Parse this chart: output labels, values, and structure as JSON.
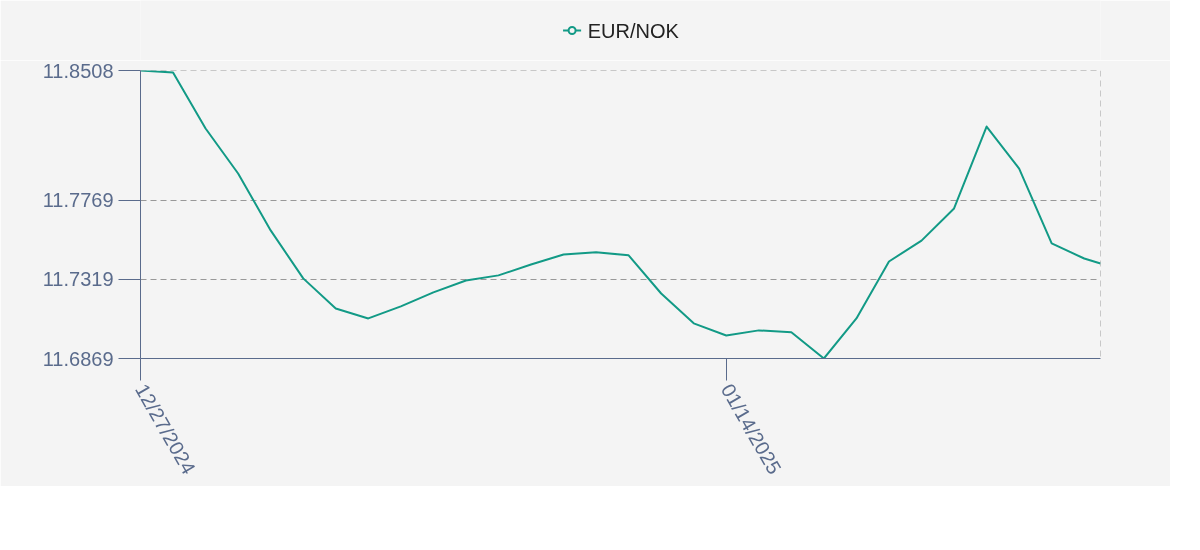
{
  "chart_data": {
    "type": "line",
    "x": [
      "2024-12-27",
      "2024-12-28",
      "2024-12-29",
      "2024-12-30",
      "2024-12-31",
      "2025-01-01",
      "2025-01-02",
      "2025-01-03",
      "2025-01-04",
      "2025-01-05",
      "2025-01-06",
      "2025-01-07",
      "2025-01-08",
      "2025-01-09",
      "2025-01-10",
      "2025-01-11",
      "2025-01-12",
      "2025-01-13",
      "2025-01-14",
      "2025-01-15",
      "2025-01-16",
      "2025-01-17",
      "2025-01-18",
      "2025-01-19",
      "2025-01-20",
      "2025-01-21",
      "2025-01-22",
      "2025-01-23",
      "2025-01-24",
      "2025-01-25",
      "2025-01-25T12:00"
    ],
    "series": [
      {
        "name": "EUR/NOK",
        "color": "#129a86",
        "values": [
          11.8508,
          11.8497,
          11.8178,
          11.7922,
          11.7598,
          11.7325,
          11.7154,
          11.7097,
          11.7166,
          11.7245,
          11.7313,
          11.7342,
          11.7404,
          11.7461,
          11.7473,
          11.7456,
          11.7239,
          11.7069,
          11.7,
          11.7029,
          11.7018,
          11.6869,
          11.7097,
          11.7421,
          11.754,
          11.7723,
          11.8189,
          11.795,
          11.7524,
          11.7438,
          11.741
        ]
      }
    ],
    "xlim": [
      "2024-12-27",
      "2025-01-25T12:00"
    ],
    "xticks": [
      {
        "value": "2024-12-27",
        "label": "12/27/2024"
      },
      {
        "value": "2025-01-14",
        "label": "01/14/2025"
      }
    ],
    "ylim": [
      11.6869,
      11.8508
    ],
    "yticks": [
      11.6869,
      11.7319,
      11.7769,
      11.8508
    ],
    "grid": true,
    "legend": "top",
    "line_style": "solid"
  }
}
